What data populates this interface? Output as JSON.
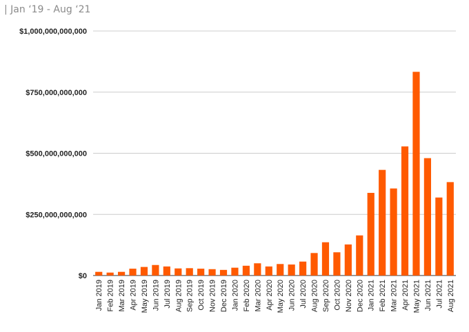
{
  "header": {
    "subtitle": "| Jan ‘19 - Aug ‘21"
  },
  "chart_data": {
    "type": "bar",
    "title": "",
    "xlabel": "",
    "ylabel": "",
    "ylim": [
      0,
      1000000000000
    ],
    "yticks": [
      0,
      250000000000,
      500000000000,
      750000000000,
      1000000000000
    ],
    "ytick_labels": [
      "$0",
      "$250,000,000,000",
      "$500,000,000,000",
      "$750,000,000,000",
      "$1,000,000,000,000"
    ],
    "grid": true,
    "legend": "none",
    "bar_color": "#ff5a00",
    "categories": [
      "Jan 2019",
      "Feb 2019",
      "Mar 2019",
      "Apr 2019",
      "May 2019",
      "Jun 2019",
      "Jul 2019",
      "Aug 2019",
      "Sep 2019",
      "Oct 2019",
      "Nov 2019",
      "Dec 2019",
      "Jan 2020",
      "Feb 2020",
      "Mar 2020",
      "Apr 2020",
      "May 2020",
      "Jun 2020",
      "Jul 2020",
      "Aug 2020",
      "Sep 2020",
      "Oct 2020",
      "Nov 2020",
      "Dec 2020",
      "Jan 2021",
      "Feb 2021",
      "Mar 2021",
      "Apr 2021",
      "May 2021",
      "Jun 2021",
      "Jul 2021",
      "Aug 2021"
    ],
    "values": [
      15000000000,
      12000000000,
      15000000000,
      28000000000,
      35000000000,
      43000000000,
      37000000000,
      29000000000,
      30000000000,
      28000000000,
      26000000000,
      23000000000,
      32000000000,
      40000000000,
      50000000000,
      37000000000,
      47000000000,
      45000000000,
      57000000000,
      92000000000,
      136000000000,
      95000000000,
      127000000000,
      164000000000,
      338000000000,
      432000000000,
      356000000000,
      528000000000,
      833000000000,
      480000000000,
      319000000000,
      382000000000
    ]
  }
}
